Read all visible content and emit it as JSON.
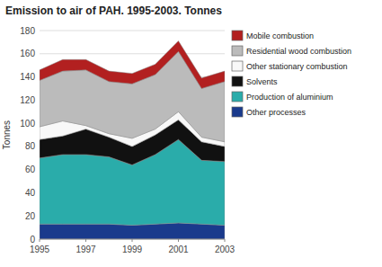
{
  "chart_data": {
    "type": "area",
    "stacked": true,
    "title": "Emission to air of PAH. 1995-2003. Tonnes",
    "ylabel": "Tonnes",
    "x": [
      1995,
      1996,
      1997,
      1998,
      1999,
      2000,
      2001,
      2002,
      2003
    ],
    "xlim": [
      1995,
      2003
    ],
    "xticks": [
      1995,
      1997,
      1999,
      2001,
      2003
    ],
    "ylim": [
      0,
      180
    ],
    "yticks": [
      0,
      20,
      40,
      60,
      80,
      100,
      120,
      140,
      160,
      180
    ],
    "grid": true,
    "legend": "right",
    "series": [
      {
        "name": "Other processes",
        "color": "#1a3a8c",
        "values": [
          13,
          13,
          13,
          13,
          12,
          13,
          14,
          13,
          12
        ]
      },
      {
        "name": "Production of aluminium",
        "color": "#2aacaa",
        "values": [
          57,
          60,
          60,
          58,
          52,
          60,
          72,
          55,
          55
        ]
      },
      {
        "name": "Solvents",
        "color": "#111111",
        "values": [
          16,
          16,
          22,
          17,
          16,
          17,
          17,
          16,
          13
        ]
      },
      {
        "name": "Other stationary combustion",
        "color": "#f8f8f8",
        "values": [
          11,
          13,
          3,
          3,
          7,
          5,
          7,
          4,
          4
        ]
      },
      {
        "name": "Residential wood combustion",
        "color": "#bbbbbb",
        "values": [
          40,
          43,
          48,
          45,
          47,
          47,
          52,
          42,
          52
        ]
      },
      {
        "name": "Mobile combustion",
        "color": "#b22020",
        "values": [
          9,
          10,
          9,
          9,
          9,
          9,
          9,
          9,
          9
        ]
      }
    ]
  }
}
